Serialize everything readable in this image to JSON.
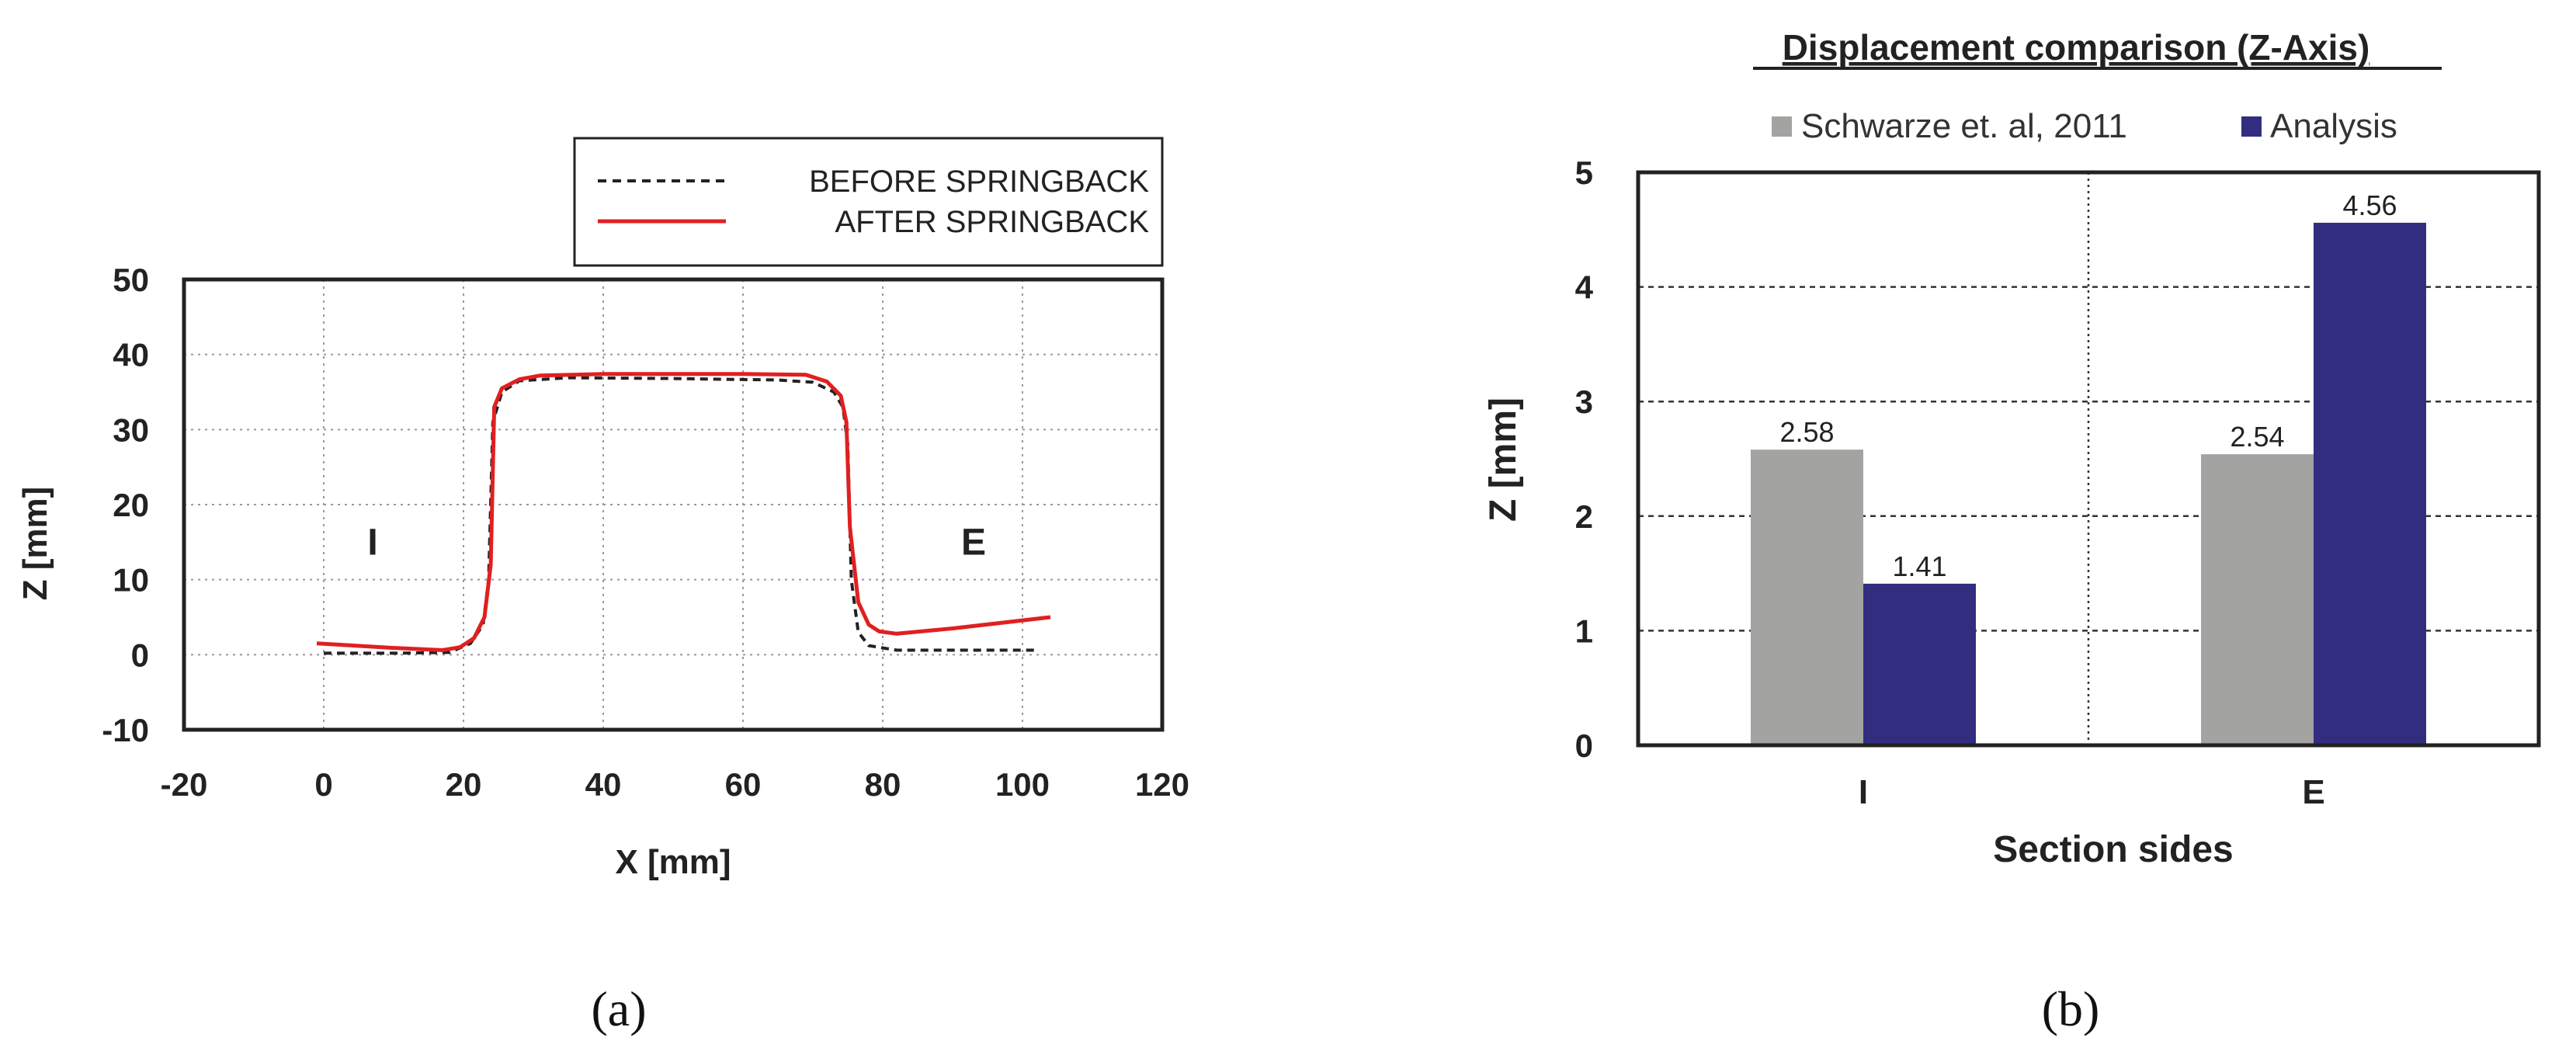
{
  "chart_data": [
    {
      "type": "line",
      "panel_label": "(a)",
      "title": "",
      "xlabel": "X [mm]",
      "ylabel": "Z [mm]",
      "xlim": [
        -20,
        120
      ],
      "ylim": [
        -10,
        50
      ],
      "xticks": [
        "-20",
        "0",
        "20",
        "40",
        "60",
        "80",
        "100",
        "120"
      ],
      "yticks": [
        "-10",
        "0",
        "10",
        "20",
        "30",
        "40",
        "50"
      ],
      "grid": true,
      "legend_position": "top-right",
      "annotations": [
        {
          "text": "I",
          "x": 7,
          "y": 15
        },
        {
          "text": "E",
          "x": 93,
          "y": 15
        }
      ],
      "series": [
        {
          "name": "BEFORE SPRINGBACK",
          "color": "#222222",
          "style": "dashed",
          "x": [
            0,
            10,
            18,
            21,
            22.8,
            23.6,
            24.2,
            25.5,
            28,
            35,
            50,
            65,
            70,
            73,
            74.3,
            75,
            75.5,
            76.5,
            78,
            82,
            90,
            102
          ],
          "y": [
            0.2,
            0.2,
            0.3,
            1.5,
            4,
            10,
            31,
            35,
            36.5,
            36.9,
            36.8,
            36.6,
            36.3,
            35,
            33,
            28,
            10,
            3,
            1.2,
            0.6,
            0.6,
            0.6
          ]
        },
        {
          "name": "AFTER SPRINGBACK",
          "color": "#e02020",
          "style": "solid",
          "x": [
            -1,
            10,
            17,
            19.5,
            21.5,
            23,
            23.9,
            24.4,
            25.5,
            28,
            31,
            40,
            60,
            69,
            72,
            74,
            74.8,
            75.3,
            76.5,
            78,
            79.5,
            82,
            90,
            104
          ],
          "y": [
            1.5,
            0.9,
            0.6,
            1,
            2.2,
            5,
            12,
            33,
            35.5,
            36.7,
            37.2,
            37.4,
            37.4,
            37.3,
            36.4,
            34.5,
            31,
            17,
            7,
            4,
            3.1,
            2.8,
            3.5,
            5
          ]
        }
      ]
    },
    {
      "type": "bar",
      "panel_label": "(b)",
      "title": "Displacement comparison (Z-Axis)",
      "xlabel": "Section sides",
      "ylabel": "Z [mm]",
      "categories": [
        "I",
        "E"
      ],
      "ylim": [
        0,
        5
      ],
      "yticks": [
        "0",
        "1",
        "2",
        "3",
        "4",
        "5"
      ],
      "grid": true,
      "legend_position": "top",
      "series": [
        {
          "name": "Schwarze et. al, 2011",
          "color": "#a3a3a1",
          "values": [
            2.58,
            2.54
          ],
          "labels": [
            "2.58",
            "2.54"
          ]
        },
        {
          "name": "Analysis",
          "color": "#332d80",
          "values": [
            1.41,
            4.56
          ],
          "labels": [
            "1.41",
            "4.56"
          ]
        }
      ]
    }
  ]
}
